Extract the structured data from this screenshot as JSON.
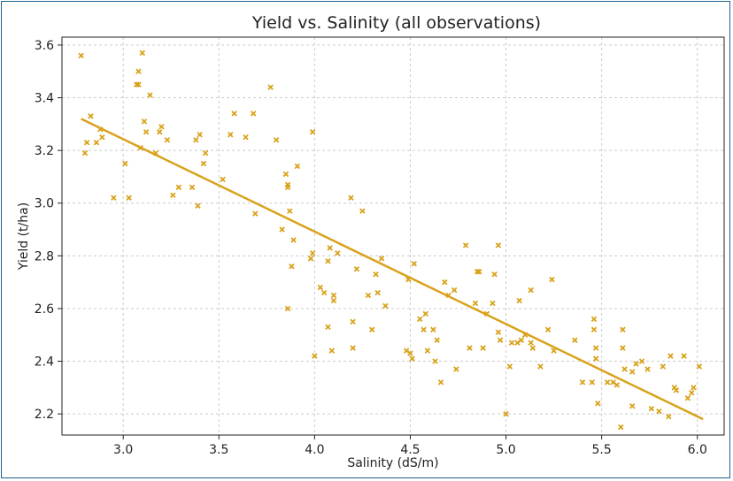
{
  "chart_data": {
    "type": "scatter",
    "title": "Yield vs. Salinity (all observations)",
    "xlabel": "Salinity (dS/m)",
    "ylabel": "Yield (t/ha)",
    "xlim": [
      2.68,
      6.14
    ],
    "ylim": [
      2.12,
      3.63
    ],
    "xticks": [
      3.0,
      3.5,
      4.0,
      4.5,
      5.0,
      5.5,
      6.0
    ],
    "yticks": [
      2.2,
      2.4,
      2.6,
      2.8,
      3.0,
      3.2,
      3.4,
      3.6
    ],
    "xtick_labels": [
      "3.0",
      "3.5",
      "4.0",
      "4.5",
      "5.0",
      "5.5",
      "6.0"
    ],
    "ytick_labels": [
      "2.2",
      "2.4",
      "2.6",
      "2.8",
      "3.0",
      "3.2",
      "3.4",
      "3.6"
    ],
    "grid": true,
    "marker": "x",
    "color": "#d9a21b",
    "trendline": {
      "x": [
        2.78,
        6.03
      ],
      "y": [
        3.32,
        2.18
      ]
    },
    "points": [
      [
        2.78,
        3.56
      ],
      [
        2.8,
        3.19
      ],
      [
        2.81,
        3.23
      ],
      [
        2.83,
        3.33
      ],
      [
        2.86,
        3.23
      ],
      [
        2.88,
        3.28
      ],
      [
        2.89,
        3.25
      ],
      [
        2.95,
        3.02
      ],
      [
        3.01,
        3.15
      ],
      [
        3.03,
        3.02
      ],
      [
        3.07,
        3.45
      ],
      [
        3.08,
        3.45
      ],
      [
        3.08,
        3.5
      ],
      [
        3.09,
        3.21
      ],
      [
        3.1,
        3.57
      ],
      [
        3.11,
        3.31
      ],
      [
        3.12,
        3.27
      ],
      [
        3.14,
        3.41
      ],
      [
        3.17,
        3.19
      ],
      [
        3.19,
        3.27
      ],
      [
        3.2,
        3.29
      ],
      [
        3.23,
        3.24
      ],
      [
        3.26,
        3.03
      ],
      [
        3.29,
        3.06
      ],
      [
        3.36,
        3.06
      ],
      [
        3.38,
        3.24
      ],
      [
        3.39,
        2.99
      ],
      [
        3.4,
        3.26
      ],
      [
        3.42,
        3.15
      ],
      [
        3.43,
        3.19
      ],
      [
        3.52,
        3.09
      ],
      [
        3.56,
        3.26
      ],
      [
        3.58,
        3.34
      ],
      [
        3.64,
        3.25
      ],
      [
        3.68,
        3.34
      ],
      [
        3.69,
        2.96
      ],
      [
        3.77,
        3.44
      ],
      [
        3.8,
        3.24
      ],
      [
        3.83,
        2.9
      ],
      [
        3.85,
        3.11
      ],
      [
        3.86,
        3.06
      ],
      [
        3.86,
        3.07
      ],
      [
        3.86,
        2.6
      ],
      [
        3.87,
        2.97
      ],
      [
        3.88,
        2.76
      ],
      [
        3.89,
        2.86
      ],
      [
        3.91,
        3.14
      ],
      [
        3.98,
        2.79
      ],
      [
        3.99,
        2.81
      ],
      [
        3.99,
        3.27
      ],
      [
        4.0,
        2.42
      ],
      [
        4.03,
        2.68
      ],
      [
        4.05,
        2.66
      ],
      [
        4.07,
        2.53
      ],
      [
        4.07,
        2.78
      ],
      [
        4.08,
        2.83
      ],
      [
        4.09,
        2.44
      ],
      [
        4.1,
        2.65
      ],
      [
        4.1,
        2.63
      ],
      [
        4.12,
        2.81
      ],
      [
        4.19,
        3.02
      ],
      [
        4.2,
        2.55
      ],
      [
        4.2,
        2.45
      ],
      [
        4.22,
        2.75
      ],
      [
        4.25,
        2.97
      ],
      [
        4.28,
        2.65
      ],
      [
        4.3,
        2.52
      ],
      [
        4.32,
        2.73
      ],
      [
        4.33,
        2.66
      ],
      [
        4.35,
        2.79
      ],
      [
        4.37,
        2.61
      ],
      [
        4.48,
        2.44
      ],
      [
        4.49,
        2.71
      ],
      [
        4.5,
        2.43
      ],
      [
        4.51,
        2.41
      ],
      [
        4.52,
        2.77
      ],
      [
        4.55,
        2.56
      ],
      [
        4.57,
        2.52
      ],
      [
        4.58,
        2.58
      ],
      [
        4.59,
        2.44
      ],
      [
        4.62,
        2.52
      ],
      [
        4.63,
        2.4
      ],
      [
        4.64,
        2.48
      ],
      [
        4.66,
        2.32
      ],
      [
        4.68,
        2.7
      ],
      [
        4.7,
        2.65
      ],
      [
        4.73,
        2.67
      ],
      [
        4.74,
        2.37
      ],
      [
        4.79,
        2.84
      ],
      [
        4.81,
        2.45
      ],
      [
        4.84,
        2.62
      ],
      [
        4.85,
        2.74
      ],
      [
        4.86,
        2.74
      ],
      [
        4.88,
        2.45
      ],
      [
        4.9,
        2.58
      ],
      [
        4.93,
        2.62
      ],
      [
        4.94,
        2.73
      ],
      [
        4.96,
        2.84
      ],
      [
        4.96,
        2.51
      ],
      [
        4.97,
        2.48
      ],
      [
        5.0,
        2.2
      ],
      [
        5.02,
        2.38
      ],
      [
        5.03,
        2.47
      ],
      [
        5.06,
        2.47
      ],
      [
        5.07,
        2.63
      ],
      [
        5.08,
        2.48
      ],
      [
        5.1,
        2.5
      ],
      [
        5.13,
        2.47
      ],
      [
        5.13,
        2.67
      ],
      [
        5.14,
        2.45
      ],
      [
        5.18,
        2.38
      ],
      [
        5.22,
        2.52
      ],
      [
        5.24,
        2.71
      ],
      [
        5.25,
        2.44
      ],
      [
        5.36,
        2.48
      ],
      [
        5.4,
        2.32
      ],
      [
        5.45,
        2.32
      ],
      [
        5.46,
        2.52
      ],
      [
        5.46,
        2.56
      ],
      [
        5.47,
        2.45
      ],
      [
        5.47,
        2.41
      ],
      [
        5.48,
        2.24
      ],
      [
        5.53,
        2.32
      ],
      [
        5.56,
        2.32
      ],
      [
        5.58,
        2.31
      ],
      [
        5.6,
        2.15
      ],
      [
        5.61,
        2.52
      ],
      [
        5.61,
        2.45
      ],
      [
        5.62,
        2.37
      ],
      [
        5.66,
        2.36
      ],
      [
        5.66,
        2.23
      ],
      [
        5.68,
        2.39
      ],
      [
        5.71,
        2.4
      ],
      [
        5.74,
        2.37
      ],
      [
        5.76,
        2.22
      ],
      [
        5.8,
        2.21
      ],
      [
        5.82,
        2.38
      ],
      [
        5.85,
        2.19
      ],
      [
        5.86,
        2.42
      ],
      [
        5.88,
        2.3
      ],
      [
        5.89,
        2.29
      ],
      [
        5.93,
        2.42
      ],
      [
        5.95,
        2.26
      ],
      [
        5.97,
        2.28
      ],
      [
        5.98,
        2.3
      ],
      [
        6.01,
        2.38
      ]
    ]
  }
}
